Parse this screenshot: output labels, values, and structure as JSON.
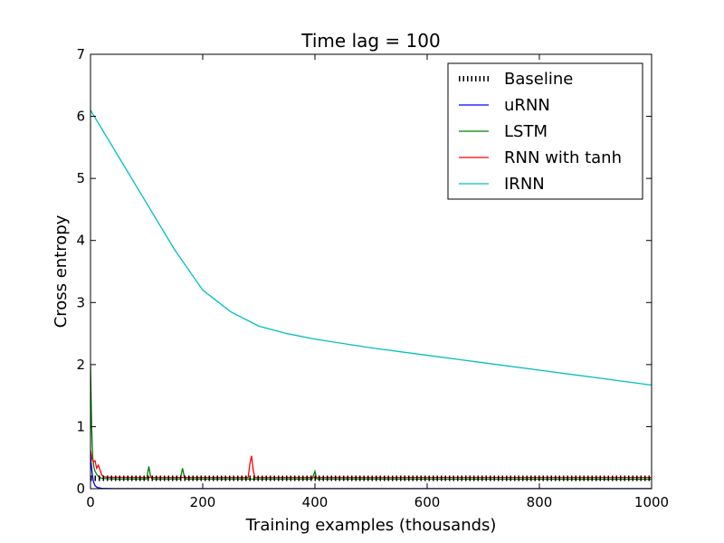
{
  "chart_data": {
    "type": "line",
    "title": "Time lag = 100",
    "xlabel": "Training examples (thousands)",
    "ylabel": "Cross entropy",
    "xlim": [
      0,
      1000
    ],
    "ylim": [
      0,
      7
    ],
    "xticks": [
      0,
      200,
      400,
      600,
      800,
      1000
    ],
    "yticks": [
      0,
      1,
      2,
      3,
      4,
      5,
      6,
      7
    ],
    "grid": false,
    "legend_position": "top-right",
    "series": [
      {
        "name": "Baseline",
        "color": "#000000",
        "style": "dotted-thick",
        "x": [
          0,
          1000
        ],
        "y": [
          0.167,
          0.167
        ]
      },
      {
        "name": "uRNN",
        "color": "#0000ff",
        "style": "solid",
        "x": [
          0,
          1,
          3,
          5,
          8,
          12,
          20,
          40,
          100,
          1000
        ],
        "y": [
          0.55,
          0.42,
          0.25,
          0.12,
          0.05,
          0.02,
          0.005,
          0.002,
          0.001,
          0.001
        ]
      },
      {
        "name": "LSTM",
        "color": "#008000",
        "style": "solid",
        "x": [
          0,
          2,
          4,
          6,
          8,
          12,
          16,
          20,
          30,
          50,
          100,
          104,
          107,
          110,
          160,
          164,
          167,
          170,
          200,
          300,
          395,
          400,
          403,
          407,
          500,
          700,
          900,
          1000
        ],
        "y": [
          2.0,
          1.0,
          0.5,
          0.35,
          0.28,
          0.22,
          0.18,
          0.17,
          0.16,
          0.155,
          0.155,
          0.36,
          0.2,
          0.155,
          0.155,
          0.33,
          0.2,
          0.155,
          0.155,
          0.155,
          0.155,
          0.28,
          0.16,
          0.155,
          0.155,
          0.153,
          0.152,
          0.152
        ]
      },
      {
        "name": "RNN with tanh",
        "color": "#ff0000",
        "style": "solid",
        "x": [
          0,
          2,
          5,
          8,
          11,
          14,
          17,
          20,
          25,
          30,
          50,
          100,
          200,
          281,
          284,
          287,
          290,
          293,
          300,
          400,
          600,
          800,
          1000
        ],
        "y": [
          0.62,
          0.5,
          0.43,
          0.45,
          0.33,
          0.38,
          0.3,
          0.22,
          0.19,
          0.185,
          0.182,
          0.18,
          0.18,
          0.18,
          0.4,
          0.53,
          0.3,
          0.18,
          0.18,
          0.18,
          0.18,
          0.18,
          0.18
        ]
      },
      {
        "name": "IRNN",
        "color": "#00bfbf",
        "style": "solid",
        "x": [
          0,
          50,
          100,
          150,
          200,
          250,
          300,
          350,
          400,
          500,
          600,
          700,
          800,
          900,
          1000
        ],
        "y": [
          6.1,
          5.35,
          4.6,
          3.85,
          3.2,
          2.85,
          2.62,
          2.5,
          2.41,
          2.27,
          2.15,
          2.03,
          1.91,
          1.79,
          1.67
        ]
      }
    ]
  }
}
